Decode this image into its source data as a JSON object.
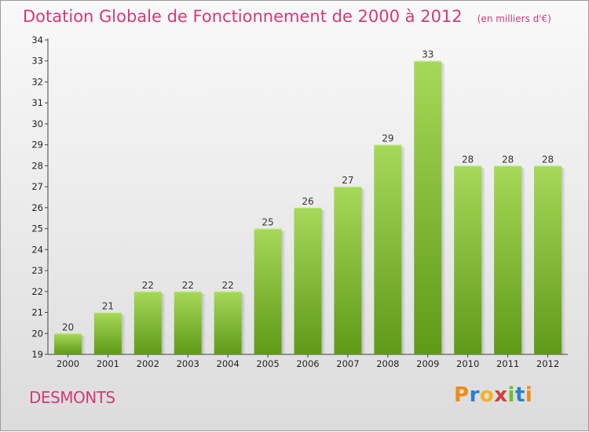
{
  "chart_data": {
    "type": "bar",
    "title": "Dotation Globale de Fonctionnement de 2000 à 2012",
    "unit": "(en milliers d'€)",
    "categories": [
      "2000",
      "2001",
      "2002",
      "2003",
      "2004",
      "2005",
      "2006",
      "2007",
      "2008",
      "2009",
      "2010",
      "2011",
      "2012"
    ],
    "values": [
      20,
      21,
      22,
      22,
      22,
      25,
      26,
      27,
      29,
      33,
      28,
      28,
      28
    ],
    "ylim": [
      19,
      34
    ],
    "yticks": [
      19,
      20,
      21,
      22,
      23,
      24,
      25,
      26,
      27,
      28,
      29,
      30,
      31,
      32,
      33,
      34
    ],
    "bar_color_top": "#a6d957",
    "bar_color_bottom": "#5f9a17",
    "grid": false
  },
  "commune": "DESMONTS",
  "logo": {
    "letters": [
      "P",
      "r",
      "o",
      "x",
      "i",
      "t",
      "i"
    ],
    "colors": [
      "#f08a1a",
      "#2a7fd0",
      "#f2b21c",
      "#d83a3a",
      "#6bbf2e",
      "#2a7fd0",
      "#f08a1a"
    ]
  },
  "colors": {
    "accent": "#d23a78"
  }
}
